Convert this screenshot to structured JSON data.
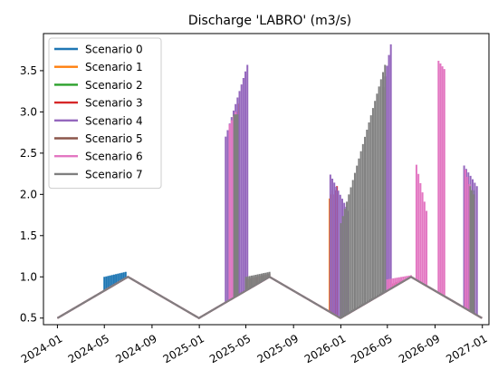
{
  "chart_data": {
    "type": "line",
    "title": "Discharge 'LABRO' (m3/s)",
    "xlabel": "",
    "ylabel": "",
    "x_range": [
      "2023-11-26",
      "2027-01-18"
    ],
    "ylim": [
      0.42,
      3.95
    ],
    "yticks": [
      0.5,
      1.0,
      1.5,
      2.0,
      2.5,
      3.0,
      3.5
    ],
    "ytick_labels": [
      "0.5",
      "1.0",
      "1.5",
      "2.0",
      "2.5",
      "3.0",
      "3.5"
    ],
    "xticks": [
      "2024-01-01",
      "2024-05-01",
      "2024-09-01",
      "2025-01-01",
      "2025-05-01",
      "2025-09-01",
      "2026-01-01",
      "2026-05-01",
      "2026-09-01",
      "2027-01-01"
    ],
    "xtick_labels": [
      "2024-01",
      "2024-05",
      "2024-09",
      "2025-01",
      "2025-05",
      "2025-09",
      "2026-01",
      "2026-05",
      "2026-09",
      "2027-01"
    ],
    "grid": false,
    "legend_position": "upper-left",
    "baseline": [
      [
        "2024-01-01",
        0.5
      ],
      [
        "2024-07-01",
        1.0
      ],
      [
        "2024-12-31",
        0.5
      ],
      [
        "2025-07-01",
        1.0
      ],
      [
        "2025-12-31",
        0.5
      ],
      [
        "2026-07-01",
        1.0
      ],
      [
        "2026-12-31",
        0.5
      ]
    ],
    "series": [
      {
        "name": "Scenario 0",
        "color": "#1f77b4",
        "spikes": [
          {
            "start": "2024-05-01",
            "end": "2024-06-25",
            "from": 1.0,
            "to": 1.06
          }
        ]
      },
      {
        "name": "Scenario 1",
        "color": "#ff7f0e",
        "spikes": [
          {
            "start": "2025-04-03",
            "end": "2025-04-12",
            "from": 2.9,
            "to": 3.1
          },
          {
            "start": "2025-12-03",
            "end": "2025-12-10",
            "from": 1.95,
            "to": 2.05
          },
          {
            "start": "2026-12-01",
            "end": "2026-12-10",
            "from": 1.6,
            "to": 2.0
          }
        ]
      },
      {
        "name": "Scenario 2",
        "color": "#2ca02c",
        "spikes": [
          {
            "start": "2026-12-05",
            "end": "2026-12-12",
            "from": 1.9,
            "to": 2.05
          }
        ]
      },
      {
        "name": "Scenario 3",
        "color": "#d62728",
        "spikes": [
          {
            "start": "2025-12-15",
            "end": "2025-12-22",
            "from": 2.0,
            "to": 2.1
          },
          {
            "start": "2026-05-01",
            "end": "2026-06-20",
            "from": 0.9,
            "to": 0.97
          }
        ]
      },
      {
        "name": "Scenario 4",
        "color": "#9467bd",
        "spikes": [
          {
            "start": "2025-03-10",
            "end": "2025-05-05",
            "from": 2.7,
            "to": 3.57
          },
          {
            "start": "2025-12-05",
            "end": "2026-01-20",
            "from": 2.24,
            "to": 1.8
          },
          {
            "start": "2026-04-20",
            "end": "2026-05-10",
            "from": 3.3,
            "to": 3.82
          },
          {
            "start": "2026-11-15",
            "end": "2026-12-18",
            "from": 2.35,
            "to": 2.1
          }
        ]
      },
      {
        "name": "Scenario 5",
        "color": "#8c564b",
        "spikes": [
          {
            "start": "2025-05-01",
            "end": "2025-07-01",
            "from": 0.97,
            "to": 1.04
          },
          {
            "start": "2026-06-01",
            "end": "2026-07-01",
            "from": 0.95,
            "to": 1.0
          }
        ]
      },
      {
        "name": "Scenario 6",
        "color": "#e377c2",
        "spikes": [
          {
            "start": "2025-03-20",
            "end": "2025-04-05",
            "from": 2.85,
            "to": 3.0
          },
          {
            "start": "2026-05-01",
            "end": "2026-07-01",
            "from": 0.97,
            "to": 1.02
          },
          {
            "start": "2026-07-15",
            "end": "2026-08-10",
            "from": 2.36,
            "to": 1.8
          },
          {
            "start": "2026-09-10",
            "end": "2026-09-25",
            "from": 3.62,
            "to": 3.52
          },
          {
            "start": "2026-11-18",
            "end": "2026-12-10",
            "from": 2.3,
            "to": 1.95
          }
        ]
      },
      {
        "name": "Scenario 7",
        "color": "#7f7f7f",
        "spikes": [
          {
            "start": "2025-04-01",
            "end": "2025-04-10",
            "from": 2.97,
            "to": 2.97
          },
          {
            "start": "2025-05-01",
            "end": "2025-07-01",
            "from": 1.0,
            "to": 1.06
          },
          {
            "start": "2026-01-01",
            "end": "2026-04-25",
            "from": 1.65,
            "to": 3.57
          },
          {
            "start": "2026-12-01",
            "end": "2026-12-10",
            "from": 2.1,
            "to": 2.0
          }
        ]
      }
    ]
  }
}
